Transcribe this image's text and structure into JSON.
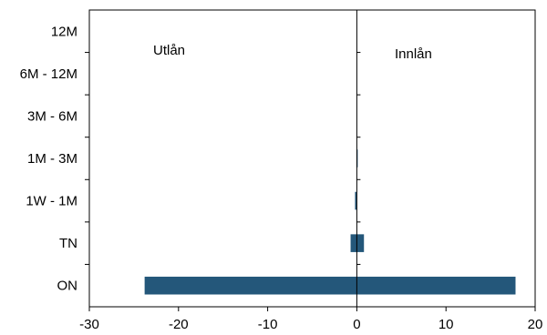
{
  "chart_data": {
    "type": "bar",
    "orientation": "horizontal",
    "categories": [
      "12M",
      "6M - 12M",
      "3M - 6M",
      "1M - 3M",
      "1W - 1M",
      "TN",
      "ON"
    ],
    "series": [
      {
        "values": [
          0,
          0,
          0,
          0,
          -0.2,
          -0.7,
          -23.8
        ]
      },
      {
        "values": [
          0,
          0,
          0,
          0.1,
          0,
          0.8,
          17.8
        ]
      }
    ],
    "xlim": [
      -30,
      20
    ],
    "xticks": [
      -30,
      -20,
      -10,
      0,
      10,
      20
    ],
    "annotations": [
      "Utlån",
      "Innlån"
    ],
    "bar_color": "#24577a",
    "grid": false
  }
}
